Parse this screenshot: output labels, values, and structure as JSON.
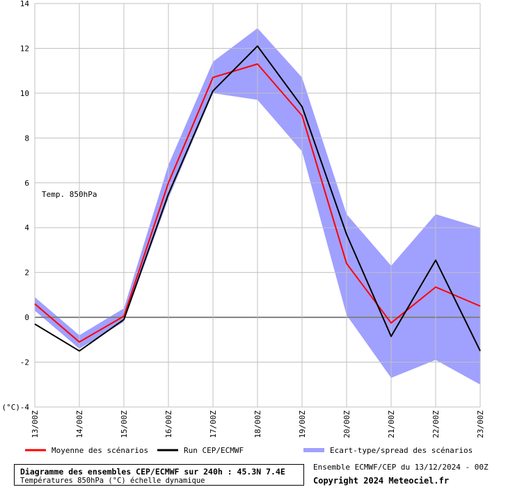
{
  "chart_data": {
    "type": "line",
    "annotation": "Temp. 850hPa",
    "y_unit_label": "(°C)",
    "ylim": [
      -4,
      14
    ],
    "y_ticks": [
      -4,
      -2,
      0,
      2,
      4,
      6,
      8,
      10,
      12,
      14
    ],
    "categories": [
      "13/00Z",
      "14/00Z",
      "15/00Z",
      "16/00Z",
      "17/00Z",
      "18/00Z",
      "19/00Z",
      "20/00Z",
      "21/00Z",
      "22/00Z",
      "23/00Z"
    ],
    "grid": true,
    "legend_position": "bottom",
    "series": [
      {
        "name": "Moyenne des scénarios",
        "color": "#ff0000",
        "values": [
          0.6,
          -1.1,
          0.05,
          6.0,
          10.7,
          11.3,
          9.0,
          2.4,
          -0.25,
          1.35,
          0.5
        ]
      },
      {
        "name": "Run CEP/ECMWF",
        "color": "#000000",
        "values": [
          -0.3,
          -1.5,
          -0.1,
          5.5,
          10.1,
          12.1,
          9.4,
          3.7,
          -0.85,
          2.55,
          -1.5
        ]
      }
    ],
    "band": {
      "name": "Ecart-type/spread des scénarios",
      "color": "#a0a0ff",
      "upper": [
        0.9,
        -0.8,
        0.4,
        6.8,
        11.4,
        12.9,
        10.7,
        4.6,
        2.3,
        4.6,
        4.0
      ],
      "lower": [
        0.3,
        -1.4,
        -0.2,
        5.3,
        10.0,
        9.7,
        7.4,
        0.1,
        -2.7,
        -1.9,
        -3.0
      ]
    }
  },
  "footer": {
    "title": "Diagramme des ensembles CEP/ECMWF sur 240h : 45.3N 7.4E",
    "subtitle": "Températures 850hPa (°C) échelle dynamique",
    "source": "Ensemble ECMWF/CEP du 13/12/2024 - 00Z",
    "copyright": "Copyright 2024 Meteociel.fr"
  },
  "colors": {
    "grid": "#c0c0c0",
    "zero_line": "#808080",
    "band": "#a0a0ff",
    "mean": "#ff0000",
    "run": "#000000"
  }
}
